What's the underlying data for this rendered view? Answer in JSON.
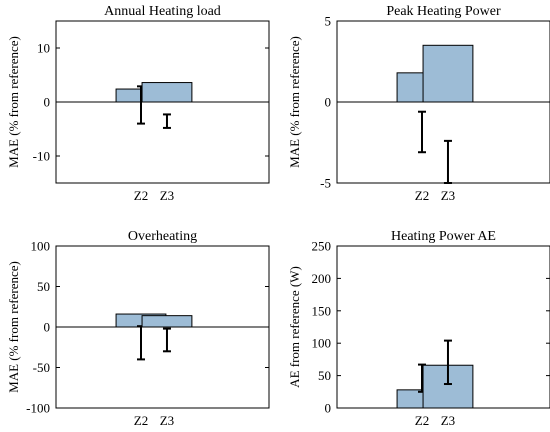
{
  "chart_data": [
    {
      "type": "bar",
      "title": "Annual Heating load",
      "ylabel": "MAE (% from reference)",
      "categories": [
        "Z2",
        "Z3"
      ],
      "values": [
        2.4,
        3.6
      ],
      "error_bars": [
        {
          "low": -4.0,
          "high": 2.9
        },
        {
          "low": -4.8,
          "high": -2.3
        }
      ],
      "ylim": [
        -15,
        15
      ],
      "yticks": [
        -10,
        0,
        10
      ],
      "grid": false
    },
    {
      "type": "bar",
      "title": "Peak Heating Power",
      "ylabel": "MAE (% from reference)",
      "categories": [
        "Z2",
        "Z3"
      ],
      "values": [
        1.8,
        3.5
      ],
      "error_bars": [
        {
          "low": -3.1,
          "high": -0.6
        },
        {
          "low": -5.0,
          "high": -2.4
        }
      ],
      "ylim": [
        -5,
        5
      ],
      "yticks": [
        -5,
        0,
        5
      ],
      "grid": false
    },
    {
      "type": "bar",
      "title": "Overheating",
      "ylabel": "MAE (% from reference)",
      "categories": [
        "Z2",
        "Z3"
      ],
      "values": [
        16,
        14
      ],
      "error_bars": [
        {
          "low": -40,
          "high": 1
        },
        {
          "low": -30,
          "high": -2
        }
      ],
      "ylim": [
        -100,
        100
      ],
      "yticks": [
        -100,
        -50,
        0,
        50,
        100
      ],
      "grid": false
    },
    {
      "type": "bar",
      "title": "Heating Power AE",
      "ylabel": "AE from reference (W)",
      "categories": [
        "Z2",
        "Z3"
      ],
      "values": [
        28,
        66
      ],
      "error_bars": [
        {
          "low": 25,
          "high": 67
        },
        {
          "low": 37,
          "high": 104
        }
      ],
      "ylim": [
        0,
        250
      ],
      "yticks": [
        0,
        50,
        100,
        150,
        200,
        250
      ],
      "grid": false
    }
  ]
}
